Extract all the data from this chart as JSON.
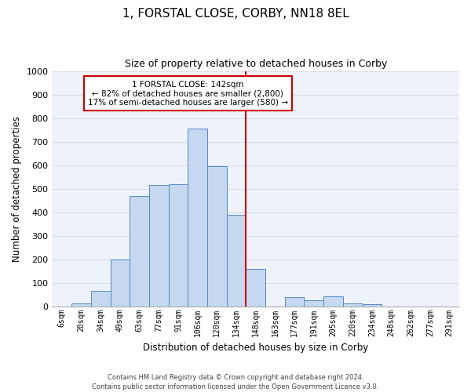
{
  "title": "1, FORSTAL CLOSE, CORBY, NN18 8EL",
  "subtitle": "Size of property relative to detached houses in Corby",
  "xlabel": "Distribution of detached houses by size in Corby",
  "ylabel": "Number of detached properties",
  "bar_labels": [
    "6sqm",
    "20sqm",
    "34sqm",
    "49sqm",
    "63sqm",
    "77sqm",
    "91sqm",
    "106sqm",
    "120sqm",
    "134sqm",
    "148sqm",
    "163sqm",
    "177sqm",
    "191sqm",
    "205sqm",
    "220sqm",
    "234sqm",
    "248sqm",
    "262sqm",
    "277sqm",
    "291sqm"
  ],
  "bar_values": [
    0,
    12,
    65,
    200,
    470,
    515,
    520,
    755,
    595,
    390,
    160,
    0,
    40,
    25,
    43,
    12,
    8,
    0,
    0,
    0,
    0
  ],
  "bar_color": "#c5d8f0",
  "bar_edge_color": "#5588cc",
  "vline_x_index": 10,
  "vline_color": "#cc0000",
  "annotation_text": "1 FORSTAL CLOSE: 142sqm\n← 82% of detached houses are smaller (2,800)\n17% of semi-detached houses are larger (580) →",
  "annotation_box_color": "#cc0000",
  "bg_color": "#eef2fb",
  "footer": "Contains HM Land Registry data © Crown copyright and database right 2024.\nContains public sector information licensed under the Open Government Licence v3.0.",
  "ylim": [
    0,
    1000
  ],
  "yticks": [
    0,
    100,
    200,
    300,
    400,
    500,
    600,
    700,
    800,
    900,
    1000
  ]
}
